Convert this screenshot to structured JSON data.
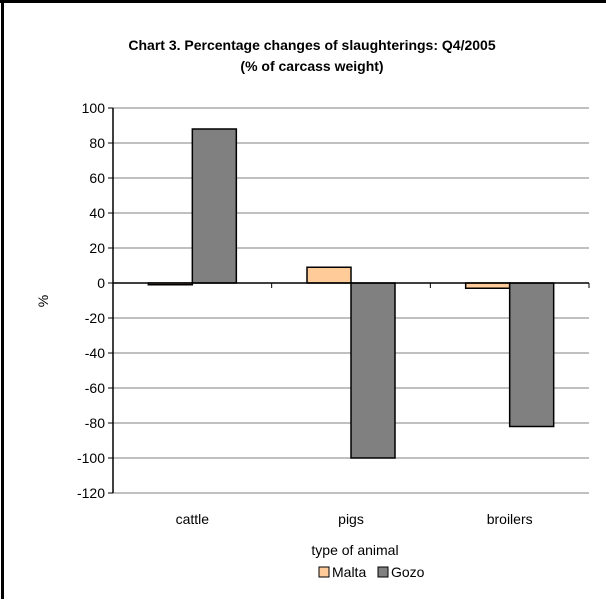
{
  "chart_data": {
    "type": "bar",
    "title": "Chart 3.  Percentage changes of slaughterings: Q4/2005",
    "subtitle": "(% of carcass weight)",
    "xlabel": "type of animal",
    "ylabel": "%",
    "categories": [
      "cattle",
      "pigs",
      "broilers"
    ],
    "series": [
      {
        "name": "Malta",
        "values": [
          -1,
          9,
          -3
        ],
        "color": "#FFCC99"
      },
      {
        "name": "Gozo",
        "values": [
          88,
          -100,
          -82
        ],
        "color": "#808080"
      }
    ],
    "ylim": [
      -120,
      100
    ],
    "yticks": [
      100,
      80,
      60,
      40,
      20,
      0,
      -20,
      -40,
      -60,
      -80,
      -100,
      -120
    ],
    "grid": true,
    "legend": "bottom"
  }
}
